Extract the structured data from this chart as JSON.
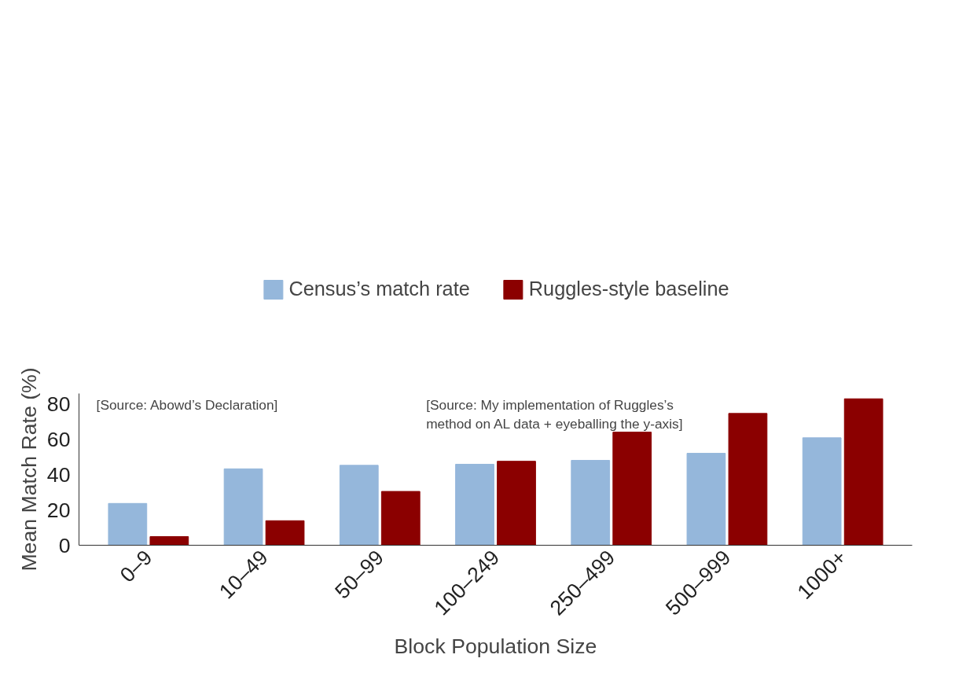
{
  "chart_data": {
    "type": "bar",
    "xlabel": "Block Population Size",
    "ylabel": "Mean Match Rate (%)",
    "categories": [
      "0–9",
      "10–49",
      "50–99",
      "100–249",
      "250–499",
      "500–999",
      "1000+"
    ],
    "series": [
      {
        "name": "Census’s match rate",
        "color": "#95b7db",
        "values": [
          23.7,
          43.3,
          45.3,
          45.9,
          48.1,
          52.1,
          60.9
        ]
      },
      {
        "name": "Ruggles-style baseline",
        "color": "#8b0000",
        "values": [
          4.9,
          13.9,
          30.5,
          47.6,
          64.1,
          74.7,
          83.0
        ]
      }
    ],
    "annotations": [
      "[Source: Abowd’s Declaration]",
      "[Source: My implementation of Ruggles’s\nmethod on AL data + eyeballing the y-axis]"
    ],
    "ylim": [
      0,
      86
    ],
    "yticks": [
      0,
      20,
      40,
      60,
      80
    ],
    "grid": false,
    "legend": "top"
  }
}
